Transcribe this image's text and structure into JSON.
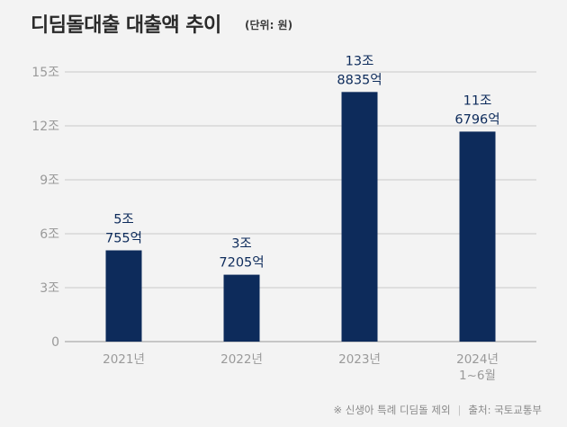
{
  "header": {
    "title": "디딤돌대출 대출액 추이",
    "unit": "(단위: 원)"
  },
  "chart_data": {
    "type": "bar",
    "categories": [
      "2021년",
      "2022년",
      "2023년",
      "2024년\n1~6월"
    ],
    "values": [
      5.0755,
      3.7205,
      13.8835,
      11.6796
    ],
    "data_labels": [
      [
        "5조",
        "755억"
      ],
      [
        "3조",
        "7205억"
      ],
      [
        "13조",
        "8835억"
      ],
      [
        "11조",
        "6796억"
      ]
    ],
    "y_ticks": [
      0,
      3,
      6,
      9,
      12,
      15
    ],
    "y_tick_labels": [
      "0",
      "3조",
      "6조",
      "9조",
      "12조",
      "15조"
    ],
    "ylim": [
      0,
      15
    ],
    "grid": true,
    "bar_color": "#0d2b5b"
  },
  "footer": {
    "note": "※ 신생아 특례 디딤돌 제외",
    "source": "출처: 국토교통부"
  }
}
